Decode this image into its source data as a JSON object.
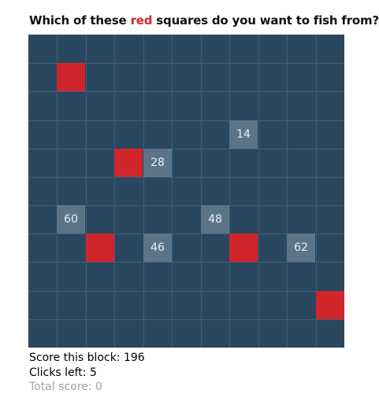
{
  "prompt": {
    "before": "Which of these ",
    "highlight": "red",
    "after": " squares do you want to fish from?"
  },
  "grid": {
    "columns": 11,
    "rows": 11,
    "background_color": "#294860",
    "red_color": "#d0262b",
    "revealed_color": "#5c7488",
    "red_squares": [
      {
        "col": 1,
        "row": 1
      },
      {
        "col": 3,
        "row": 4
      },
      {
        "col": 2,
        "row": 7
      },
      {
        "col": 7,
        "row": 7
      },
      {
        "col": 10,
        "row": 9
      }
    ],
    "revealed_squares": [
      {
        "col": 7,
        "row": 3,
        "value": "14"
      },
      {
        "col": 4,
        "row": 4,
        "value": "28"
      },
      {
        "col": 1,
        "row": 6,
        "value": "60"
      },
      {
        "col": 6,
        "row": 6,
        "value": "48"
      },
      {
        "col": 4,
        "row": 7,
        "value": "46"
      },
      {
        "col": 9,
        "row": 7,
        "value": "62"
      }
    ]
  },
  "stats": {
    "score_block": "Score this block: 196",
    "clicks_left": "Clicks left: 5",
    "total_score": "Total score: 0"
  }
}
